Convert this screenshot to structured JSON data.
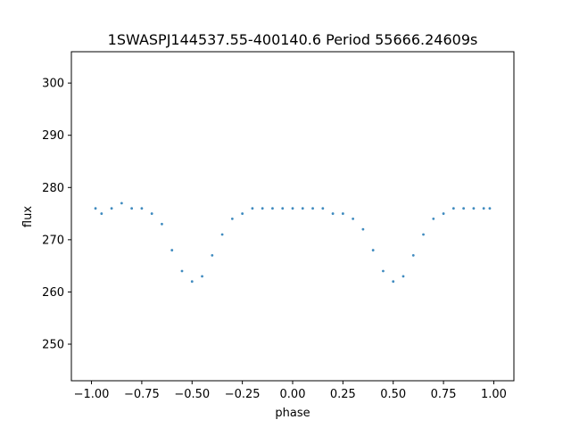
{
  "chart_data": {
    "type": "scatter",
    "title": "1SWASPJ144537.55-400140.6 Period 55666.24609s",
    "xlabel": "phase",
    "ylabel": "flux",
    "xlim": [
      -1.1,
      1.1
    ],
    "ylim": [
      243,
      306
    ],
    "x_ticks": [
      -1.0,
      -0.75,
      -0.5,
      -0.25,
      0.0,
      0.25,
      0.5,
      0.75,
      1.0
    ],
    "x_tick_labels": [
      "−1.00",
      "−0.75",
      "−0.50",
      "−0.25",
      "0.00",
      "0.25",
      "0.50",
      "0.75",
      "1.00"
    ],
    "y_ticks": [
      250,
      260,
      270,
      280,
      290,
      300
    ],
    "y_tick_labels": [
      "250",
      "260",
      "270",
      "280",
      "290",
      "300"
    ],
    "grid": false,
    "color": "#1f77b4",
    "series": [
      {
        "x": [
          -0.98,
          -0.95,
          -0.9,
          -0.85,
          -0.8,
          -0.75,
          -0.7,
          -0.65,
          -0.6,
          -0.55,
          -0.5,
          -0.45,
          -0.4,
          -0.35,
          -0.3,
          -0.25,
          -0.2,
          -0.15,
          -0.1,
          -0.05,
          0.0,
          0.05,
          0.1,
          0.15,
          0.2,
          0.25,
          0.3,
          0.35,
          0.4,
          0.45,
          0.5,
          0.55,
          0.6,
          0.65,
          0.7,
          0.75,
          0.8,
          0.85,
          0.9,
          0.95,
          0.98
        ],
        "y": [
          276,
          275,
          276,
          277,
          276,
          276,
          275,
          273,
          268,
          264,
          262,
          263,
          267,
          271,
          274,
          275,
          276,
          276,
          276,
          276,
          276,
          276,
          276,
          276,
          275,
          275,
          274,
          272,
          268,
          264,
          262,
          263,
          267,
          271,
          274,
          275,
          276,
          276,
          276,
          276,
          276
        ]
      }
    ]
  }
}
